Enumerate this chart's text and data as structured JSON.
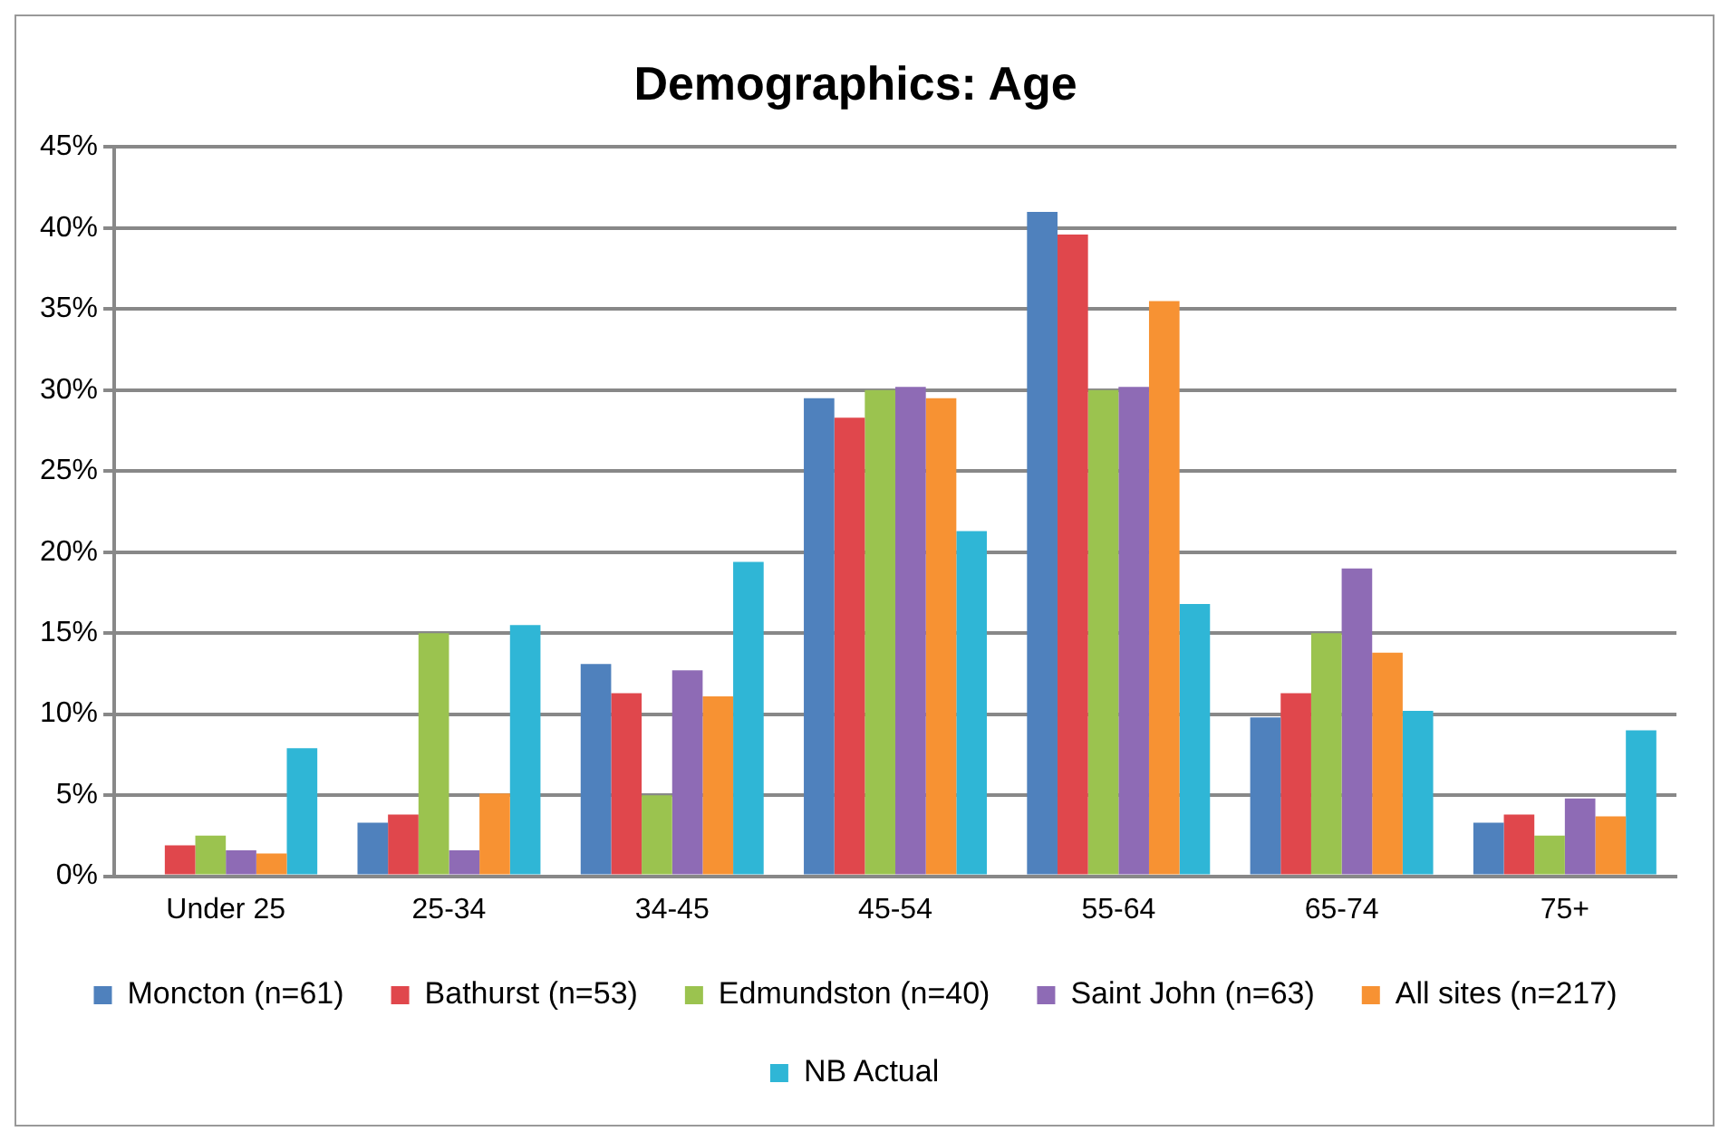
{
  "chart_data": {
    "type": "bar",
    "title": "Demographics: Age",
    "categories": [
      "Under 25",
      "25-34",
      "34-45",
      "45-54",
      "55-64",
      "65-74",
      "75+"
    ],
    "series": [
      {
        "name": "Moncton (n=61)",
        "color": "#4f81bd",
        "values": [
          0,
          3.3,
          13.1,
          29.5,
          41,
          9.8,
          3.3
        ]
      },
      {
        "name": "Bathurst (n=53)",
        "color": "#e0474c",
        "values": [
          1.9,
          3.8,
          11.3,
          28.3,
          39.6,
          11.3,
          3.8
        ]
      },
      {
        "name": "Edmundston (n=40)",
        "color": "#9bc34f",
        "values": [
          2.5,
          15,
          5,
          30,
          30,
          15,
          2.5
        ]
      },
      {
        "name": "Saint John (n=63)",
        "color": "#8e6bb5",
        "values": [
          1.6,
          1.6,
          12.7,
          30.2,
          30.2,
          19,
          4.8
        ]
      },
      {
        "name": "All sites (n=217)",
        "color": "#f79233",
        "values": [
          1.4,
          5.1,
          11.1,
          29.5,
          35.5,
          13.8,
          3.7
        ]
      },
      {
        "name": "NB Actual",
        "color": "#2fb6d6",
        "values": [
          7.9,
          15.5,
          19.4,
          21.3,
          16.8,
          10.2,
          9
        ]
      }
    ],
    "ylim": [
      0,
      45
    ],
    "yticks": [
      {
        "value": 0,
        "label": "0%"
      },
      {
        "value": 5,
        "label": "5%"
      },
      {
        "value": 10,
        "label": "10%"
      },
      {
        "value": 15,
        "label": "15%"
      },
      {
        "value": 20,
        "label": "20%"
      },
      {
        "value": 25,
        "label": "25%"
      },
      {
        "value": 30,
        "label": "30%"
      },
      {
        "value": 35,
        "label": "35%"
      },
      {
        "value": 40,
        "label": "40%"
      },
      {
        "value": 45,
        "label": "45%"
      }
    ],
    "grid": "y",
    "legend": "bottom"
  }
}
